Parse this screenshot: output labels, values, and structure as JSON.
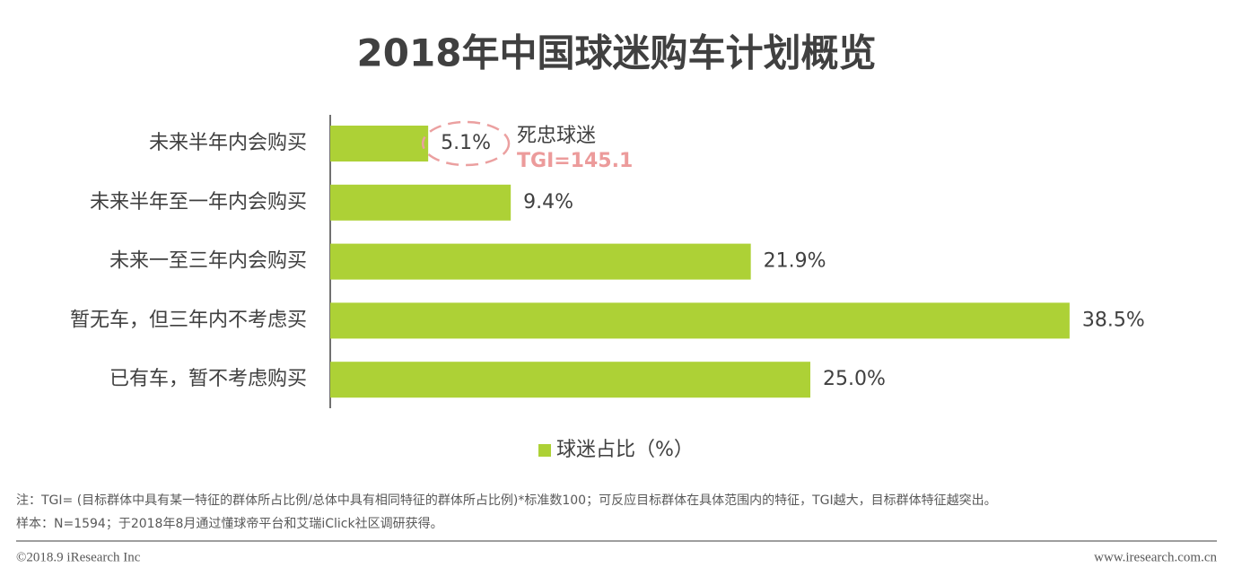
{
  "chart_data": {
    "type": "bar",
    "orientation": "horizontal",
    "title": "2018年中国球迷购车计划概览",
    "categories": [
      "未来半年内会购买",
      "未来半年至一年内会购买",
      "未来一至三年内会购买",
      "暂无车，但三年内不考虑买",
      "已有车，暂不考虑购买"
    ],
    "series": [
      {
        "name": "球迷占比（%）",
        "color": "#add136",
        "values": [
          5.1,
          9.4,
          21.9,
          38.5,
          25.0
        ],
        "value_labels": [
          "5.1%",
          "9.4%",
          "21.9%",
          "38.5%",
          "25.0%"
        ]
      }
    ],
    "annotation": {
      "label": "死忠球迷",
      "text": "TGI=145.1"
    },
    "legend": "bottom"
  },
  "notes": [
    "注：TGI= (目标群体中具有某一特征的群体所占比例/总体中具有相同特征的群体所占比例)*标准数100；可反应目标群体在具体范围内的特征，TGI越大，目标群体特征越突出。",
    "样本：N=1594；于2018年8月通过懂球帝平台和艾瑞iClick社区调研获得。"
  ],
  "footer": {
    "left": "©2018.9 iResearch Inc",
    "right": "www.iresearch.com.cn"
  }
}
